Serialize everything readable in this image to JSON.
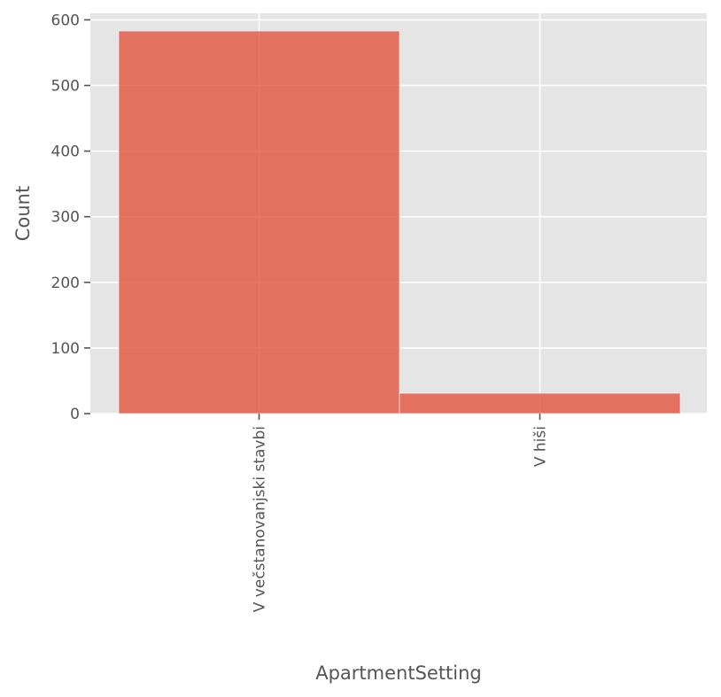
{
  "chart_data": {
    "type": "bar",
    "categories": [
      "V večstanovanjski stavbi",
      "V hiši"
    ],
    "values": [
      583,
      31
    ],
    "xlabel": "ApartmentSetting",
    "ylabel": "Count",
    "ylim": [
      0,
      610
    ],
    "yticks": [
      0,
      100,
      200,
      300,
      400,
      500,
      600
    ],
    "grid": true,
    "bar_color": "#E24A33",
    "background_color": "#E5E5E5",
    "grid_color": "#FFFFFF",
    "text_color": "#555555"
  }
}
